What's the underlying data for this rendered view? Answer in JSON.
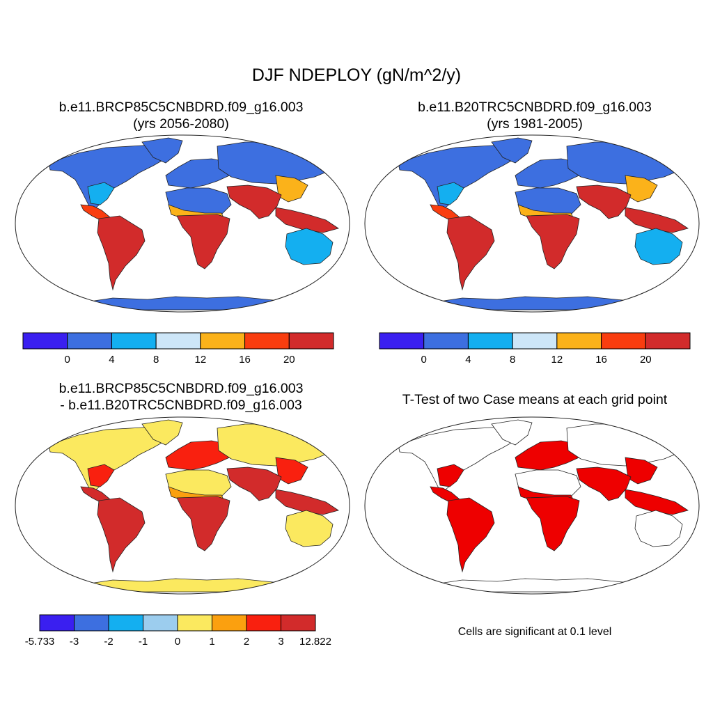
{
  "title": "DJF NDEPLOY (gN/m^2/y)",
  "colors": {
    "ocean": "#ffffff",
    "outline": "#222222",
    "land_default": "#3a6fe0",
    "signif": "#ee0000"
  },
  "panels": [
    {
      "id": "case1",
      "title_line1": "b.e11.BRCP85C5CNBDRD.f09_g16.003",
      "title_line2": "(yrs 2056-2080)",
      "colorbar": {
        "colors": [
          "#3a1ff0",
          "#3d6fe0",
          "#14aff0",
          "#cde6f8",
          "#fbb21a",
          "#f93d0f",
          "#d22b2b"
        ],
        "labels": [
          "0",
          "4",
          "8",
          "12",
          "16",
          "20"
        ]
      },
      "regions": {
        "north_america": "#3d6fe0",
        "greenland": "#3d6fe0",
        "central_america": "#f93d0f",
        "south_america": "#d22b2b",
        "europe": "#3d6fe0",
        "northern_asia": "#3d6fe0",
        "south_asia": "#d22b2b",
        "africa_north": "#3d6fe0",
        "africa_south": "#d22b2b",
        "southeast_asia": "#d22b2b",
        "australia": "#14aff0",
        "antarctica": "#3d6fe0",
        "us_east": "#14aff0",
        "sahel": "#fbb21a",
        "east_asia": "#fbb21a",
        "new_zealand": "#f93d0f"
      }
    },
    {
      "id": "case2",
      "title_line1": "b.e11.B20TRC5CNBDRD.f09_g16.003",
      "title_line2": "(yrs 1981-2005)",
      "colorbar": {
        "colors": [
          "#3a1ff0",
          "#3d6fe0",
          "#14aff0",
          "#cde6f8",
          "#fbb21a",
          "#f93d0f",
          "#d22b2b"
        ],
        "labels": [
          "0",
          "4",
          "8",
          "12",
          "16",
          "20"
        ]
      },
      "regions": {
        "north_america": "#3d6fe0",
        "greenland": "#3d6fe0",
        "central_america": "#f93d0f",
        "south_america": "#d22b2b",
        "europe": "#3d6fe0",
        "northern_asia": "#3d6fe0",
        "south_asia": "#d22b2b",
        "africa_north": "#3d6fe0",
        "africa_south": "#d22b2b",
        "southeast_asia": "#d22b2b",
        "australia": "#14aff0",
        "antarctica": "#3d6fe0",
        "us_east": "#14aff0",
        "sahel": "#fbb21a",
        "east_asia": "#fbb21a",
        "new_zealand": "#f93d0f"
      }
    },
    {
      "id": "diff",
      "title_line1": "b.e11.BRCP85C5CNBDRD.f09_g16.003",
      "title_line2": "- b.e11.B20TRC5CNBDRD.f09_g16.003",
      "colorbar": {
        "colors": [
          "#3a1ff0",
          "#3d6fe0",
          "#14aff0",
          "#9ccdee",
          "#fbe95f",
          "#fba00f",
          "#f9200f",
          "#d22b2b"
        ],
        "labels": [
          "-5.733",
          "-3",
          "-2",
          "-1",
          "0",
          "1",
          "2",
          "3",
          "12.822"
        ]
      },
      "regions": {
        "north_america": "#fbe95f",
        "greenland": "#fbe95f",
        "central_america": "#d22b2b",
        "south_america": "#d22b2b",
        "europe": "#f9200f",
        "northern_asia": "#fbe95f",
        "south_asia": "#d22b2b",
        "africa_north": "#fbe95f",
        "africa_south": "#d22b2b",
        "southeast_asia": "#d22b2b",
        "australia": "#fbe95f",
        "antarctica": "#fbe95f",
        "us_east": "#f9200f",
        "sahel": "#fba00f",
        "east_asia": "#f9200f",
        "new_zealand": "#f9200f"
      }
    },
    {
      "id": "ttest",
      "title": "T-Test of two Case means at each grid point",
      "note": "Cells are significant at 0.1 level",
      "regions": {
        "north_america": "#ffffff",
        "greenland": "#ffffff",
        "central_america": "#ee0000",
        "south_america": "#ee0000",
        "europe": "#ee0000",
        "northern_asia": "#ffffff",
        "south_asia": "#ee0000",
        "africa_north": "#ffffff",
        "africa_south": "#ee0000",
        "southeast_asia": "#ee0000",
        "australia": "#ffffff",
        "antarctica": "#ffffff",
        "us_east": "#ee0000",
        "sahel": "#ee0000",
        "east_asia": "#ee0000",
        "new_zealand": "#ee0000"
      }
    }
  ]
}
